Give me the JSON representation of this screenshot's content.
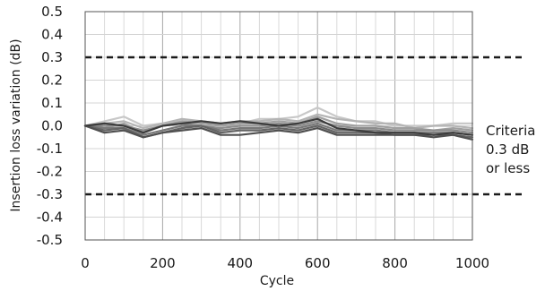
{
  "chart_data": {
    "type": "line",
    "title": "",
    "xlabel": "Cycle",
    "ylabel": "Insertion loss variation (dB)",
    "xlim": [
      0,
      1000
    ],
    "ylim": [
      -0.5,
      0.5
    ],
    "xticks": [
      0,
      200,
      400,
      600,
      800,
      1000
    ],
    "xtick_labels": [
      "0",
      "200",
      "400",
      "600",
      "800",
      "1000"
    ],
    "yticks": [
      0.5,
      0.4,
      0.3,
      0.2,
      0.1,
      0.0,
      -0.1,
      -0.2,
      -0.3,
      -0.4,
      -0.5
    ],
    "ytick_labels": [
      "0.5",
      "0.4",
      "0.3",
      "0.2",
      "0.1",
      "0.0",
      "-0.1",
      "-0.2",
      "-0.3",
      "-0.4",
      "-0.5"
    ],
    "grid": true,
    "legend": "none",
    "criteria": {
      "lines": [
        0.3,
        -0.3
      ],
      "label_lines": [
        "Criteria",
        "0.3 dB",
        "or less"
      ]
    },
    "x": [
      0,
      50,
      100,
      150,
      200,
      250,
      300,
      350,
      400,
      450,
      500,
      550,
      600,
      650,
      700,
      750,
      800,
      850,
      900,
      950,
      1000
    ],
    "series": [
      {
        "color": "#c8c8c8",
        "values": [
          0,
          0.02,
          0.04,
          0.0,
          0.01,
          0.02,
          0.02,
          0.0,
          0.01,
          0.03,
          0.03,
          0.04,
          0.08,
          0.04,
          0.02,
          0.02,
          0.0,
          0.0,
          0.0,
          0.01,
          0.01
        ]
      },
      {
        "color": "#b4b4b4",
        "values": [
          0,
          0.01,
          0.02,
          -0.01,
          0.01,
          0.03,
          0.02,
          0.01,
          0.02,
          0.02,
          0.03,
          0.02,
          0.05,
          0.03,
          0.02,
          0.01,
          0.01,
          -0.01,
          0.0,
          0.0,
          -0.01
        ]
      },
      {
        "color": "#a0a0a0",
        "values": [
          0,
          -0.01,
          0.01,
          -0.03,
          0.0,
          0.02,
          0.01,
          0.0,
          0.01,
          0.01,
          0.02,
          0.01,
          0.04,
          0.01,
          0.0,
          0.0,
          -0.01,
          -0.01,
          -0.02,
          -0.01,
          -0.02
        ]
      },
      {
        "color": "#8c8c8c",
        "values": [
          0,
          0.0,
          0.0,
          -0.02,
          0.0,
          0.01,
          0.0,
          -0.01,
          0.0,
          0.0,
          0.01,
          0.0,
          0.02,
          0.0,
          -0.01,
          -0.01,
          -0.02,
          -0.02,
          -0.02,
          -0.02,
          -0.03
        ]
      },
      {
        "color": "#787878",
        "values": [
          0,
          -0.01,
          -0.01,
          -0.04,
          -0.02,
          0.0,
          0.0,
          -0.02,
          -0.01,
          -0.01,
          0.0,
          -0.01,
          0.01,
          -0.02,
          -0.02,
          -0.02,
          -0.03,
          -0.03,
          -0.03,
          -0.03,
          -0.04
        ]
      },
      {
        "color": "#646464",
        "values": [
          0,
          -0.02,
          -0.01,
          -0.05,
          -0.03,
          -0.01,
          0.0,
          -0.03,
          -0.02,
          -0.02,
          -0.01,
          -0.02,
          0.0,
          -0.03,
          -0.03,
          -0.03,
          -0.04,
          -0.04,
          -0.04,
          -0.04,
          -0.05
        ]
      },
      {
        "color": "#505050",
        "values": [
          0,
          -0.03,
          -0.02,
          -0.05,
          -0.03,
          -0.02,
          -0.01,
          -0.04,
          -0.04,
          -0.03,
          -0.02,
          -0.03,
          -0.01,
          -0.04,
          -0.04,
          -0.04,
          -0.04,
          -0.04,
          -0.05,
          -0.04,
          -0.06
        ]
      },
      {
        "color": "#3c3c3c",
        "values": [
          0,
          0.01,
          0.0,
          -0.03,
          0.0,
          0.01,
          0.02,
          0.01,
          0.02,
          0.01,
          0.0,
          0.01,
          0.03,
          -0.01,
          -0.02,
          -0.03,
          -0.03,
          -0.03,
          -0.04,
          -0.03,
          -0.04
        ]
      }
    ]
  }
}
